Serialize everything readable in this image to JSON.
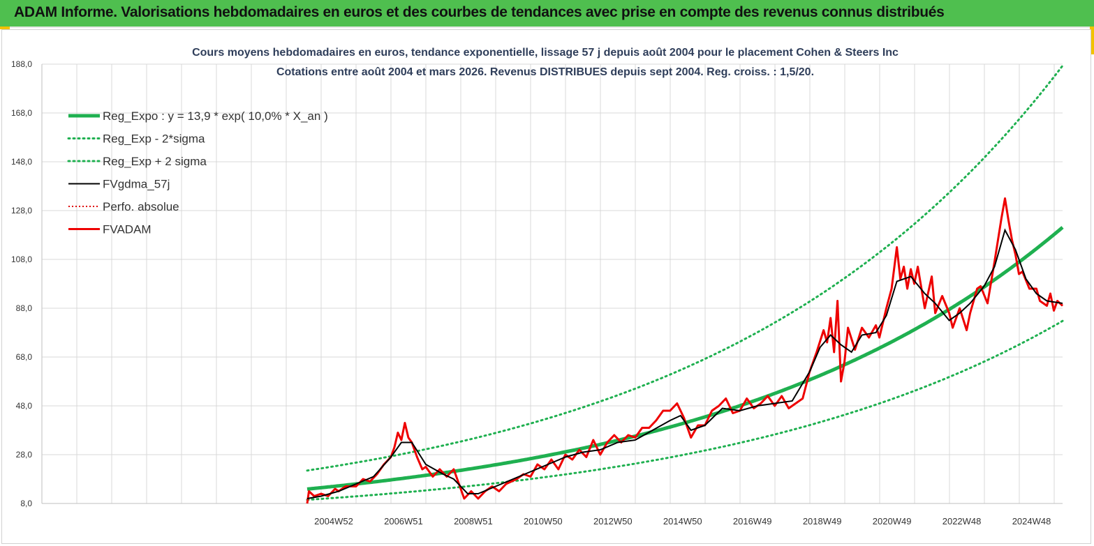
{
  "header": {
    "banner": "ADAM Informe. Valorisations hebdomadaires en euros et des courbes de tendances avec prise en compte des revenus connus distribués"
  },
  "chart_data": {
    "type": "line",
    "title": "Cours moyens hebdomadaires en euros, tendance exponentielle, lissage 57 j depuis août 2004 pour le placement Cohen & Steers Inc",
    "subtitle": "Cotations entre août 2004 et mars 2026. Revenus DISTRIBUES depuis sept 2004. Reg. croiss. : 1,5/20.",
    "y_ticks": [
      "8,0",
      "28,0",
      "48,0",
      "68,0",
      "88,0",
      "108,0",
      "128,0",
      "148,0",
      "168,0",
      "188,0"
    ],
    "ylim": [
      8,
      188
    ],
    "x_ticks": [
      "2004W52",
      "2006W51",
      "2008W51",
      "2010W50",
      "2012W50",
      "2014W50",
      "2016W49",
      "2018W49",
      "2020W49",
      "2022W48",
      "2024W48"
    ],
    "x_tick_years": [
      2005.0,
      2007.0,
      2009.0,
      2011.0,
      2013.0,
      2015.0,
      2017.0,
      2019.0,
      2021.0,
      2023.0,
      2025.0
    ],
    "xlim": [
      2004.6,
      2026.25
    ],
    "grid": true,
    "legend_position": "top-left",
    "colors": {
      "reg_expo": "#1fb050",
      "bands": "#1fb050",
      "smooth": "#000000",
      "perfo": "#e00000",
      "fvadam": "#ee0000",
      "grid": "#d9d9d9"
    },
    "series": [
      {
        "name": "Reg_Expo : y = 13,9 * exp( 10,0% *  X_an )",
        "style": "thick-solid",
        "model": {
          "a": 13.9,
          "rate": 0.1,
          "x0": 2004.6
        }
      },
      {
        "name": "Reg_Exp - 2*sigma",
        "style": "dotted",
        "model": {
          "a": 9.5,
          "rate": 0.1,
          "x0": 2004.6
        }
      },
      {
        "name": "Reg_Exp + 2 sigma",
        "style": "dotted",
        "model": {
          "a": 21.5,
          "rate": 0.1,
          "x0": 2004.6
        }
      },
      {
        "name": "FVgdma_57j",
        "style": "thin-solid",
        "points": [
          [
            2004.6,
            10
          ],
          [
            2005.0,
            11
          ],
          [
            2005.5,
            13
          ],
          [
            2006.0,
            16
          ],
          [
            2006.5,
            19
          ],
          [
            2007.0,
            27
          ],
          [
            2007.3,
            33
          ],
          [
            2007.6,
            33
          ],
          [
            2008.0,
            24
          ],
          [
            2008.5,
            20
          ],
          [
            2008.8,
            18
          ],
          [
            2009.2,
            12
          ],
          [
            2009.5,
            12
          ],
          [
            2010.0,
            15
          ],
          [
            2010.5,
            18
          ],
          [
            2011.0,
            21
          ],
          [
            2011.5,
            24
          ],
          [
            2012.0,
            27
          ],
          [
            2012.5,
            29
          ],
          [
            2013.0,
            30
          ],
          [
            2013.5,
            33
          ],
          [
            2014.0,
            34
          ],
          [
            2014.5,
            38
          ],
          [
            2015.0,
            42
          ],
          [
            2015.3,
            44
          ],
          [
            2015.6,
            38
          ],
          [
            2016.0,
            40
          ],
          [
            2016.5,
            47
          ],
          [
            2017.0,
            46
          ],
          [
            2017.5,
            48
          ],
          [
            2018.0,
            49
          ],
          [
            2018.5,
            50
          ],
          [
            2019.0,
            62
          ],
          [
            2019.3,
            72
          ],
          [
            2019.6,
            77
          ],
          [
            2019.9,
            73
          ],
          [
            2020.2,
            70
          ],
          [
            2020.5,
            77
          ],
          [
            2020.9,
            78
          ],
          [
            2021.2,
            85
          ],
          [
            2021.5,
            99
          ],
          [
            2021.9,
            101
          ],
          [
            2022.3,
            94
          ],
          [
            2022.6,
            90
          ],
          [
            2023.0,
            83
          ],
          [
            2023.3,
            86
          ],
          [
            2023.6,
            90
          ],
          [
            2024.0,
            97
          ],
          [
            2024.3,
            105
          ],
          [
            2024.6,
            120
          ],
          [
            2024.9,
            112
          ],
          [
            2025.2,
            100
          ],
          [
            2025.5,
            94
          ],
          [
            2025.8,
            91
          ],
          [
            2026.25,
            90
          ]
        ]
      },
      {
        "name": "Perfo. absolue",
        "style": "dotted-red",
        "points": []
      },
      {
        "name": "FVADAM",
        "style": "thick-red",
        "points": [
          [
            2004.6,
            8
          ],
          [
            2004.65,
            13
          ],
          [
            2004.8,
            11
          ],
          [
            2005.0,
            12
          ],
          [
            2005.2,
            11
          ],
          [
            2005.4,
            14
          ],
          [
            2005.5,
            13
          ],
          [
            2005.7,
            15
          ],
          [
            2006.0,
            15
          ],
          [
            2006.2,
            18
          ],
          [
            2006.4,
            17
          ],
          [
            2006.6,
            20
          ],
          [
            2006.8,
            24
          ],
          [
            2007.0,
            27
          ],
          [
            2007.1,
            31
          ],
          [
            2007.2,
            37
          ],
          [
            2007.3,
            34
          ],
          [
            2007.4,
            41
          ],
          [
            2007.5,
            35
          ],
          [
            2007.6,
            33
          ],
          [
            2007.75,
            27
          ],
          [
            2007.9,
            22
          ],
          [
            2008.0,
            23
          ],
          [
            2008.2,
            19
          ],
          [
            2008.4,
            22
          ],
          [
            2008.6,
            19
          ],
          [
            2008.8,
            22
          ],
          [
            2008.9,
            18
          ],
          [
            2009.0,
            14
          ],
          [
            2009.1,
            10
          ],
          [
            2009.3,
            13
          ],
          [
            2009.5,
            10
          ],
          [
            2009.7,
            13
          ],
          [
            2009.9,
            15
          ],
          [
            2010.1,
            13
          ],
          [
            2010.3,
            16
          ],
          [
            2010.6,
            18
          ],
          [
            2010.8,
            20
          ],
          [
            2011.0,
            19
          ],
          [
            2011.2,
            24
          ],
          [
            2011.4,
            22
          ],
          [
            2011.6,
            26
          ],
          [
            2011.8,
            22
          ],
          [
            2012.0,
            28
          ],
          [
            2012.2,
            26
          ],
          [
            2012.4,
            30
          ],
          [
            2012.6,
            27
          ],
          [
            2012.8,
            34
          ],
          [
            2013.0,
            28
          ],
          [
            2013.2,
            33
          ],
          [
            2013.4,
            36
          ],
          [
            2013.6,
            33
          ],
          [
            2013.8,
            36
          ],
          [
            2014.0,
            35
          ],
          [
            2014.2,
            39
          ],
          [
            2014.4,
            39
          ],
          [
            2014.6,
            42
          ],
          [
            2014.8,
            46
          ],
          [
            2015.0,
            46
          ],
          [
            2015.2,
            49
          ],
          [
            2015.4,
            43
          ],
          [
            2015.6,
            35
          ],
          [
            2015.8,
            40
          ],
          [
            2016.0,
            40
          ],
          [
            2016.2,
            46
          ],
          [
            2016.4,
            48
          ],
          [
            2016.6,
            51
          ],
          [
            2016.8,
            45
          ],
          [
            2017.0,
            46
          ],
          [
            2017.2,
            51
          ],
          [
            2017.4,
            47
          ],
          [
            2017.6,
            49
          ],
          [
            2017.8,
            52
          ],
          [
            2018.0,
            48
          ],
          [
            2018.2,
            52
          ],
          [
            2018.4,
            47
          ],
          [
            2018.6,
            49
          ],
          [
            2018.8,
            51
          ],
          [
            2019.0,
            62
          ],
          [
            2019.2,
            70
          ],
          [
            2019.4,
            79
          ],
          [
            2019.5,
            74
          ],
          [
            2019.6,
            84
          ],
          [
            2019.7,
            70
          ],
          [
            2019.8,
            91
          ],
          [
            2019.9,
            58
          ],
          [
            2020.0,
            66
          ],
          [
            2020.1,
            80
          ],
          [
            2020.3,
            71
          ],
          [
            2020.5,
            80
          ],
          [
            2020.7,
            76
          ],
          [
            2020.9,
            81
          ],
          [
            2021.0,
            76
          ],
          [
            2021.2,
            88
          ],
          [
            2021.35,
            96
          ],
          [
            2021.5,
            113
          ],
          [
            2021.6,
            100
          ],
          [
            2021.7,
            105
          ],
          [
            2021.8,
            96
          ],
          [
            2021.9,
            104
          ],
          [
            2022.0,
            98
          ],
          [
            2022.1,
            105
          ],
          [
            2022.3,
            88
          ],
          [
            2022.5,
            101
          ],
          [
            2022.6,
            86
          ],
          [
            2022.8,
            93
          ],
          [
            2023.0,
            86
          ],
          [
            2023.1,
            80
          ],
          [
            2023.3,
            88
          ],
          [
            2023.5,
            79
          ],
          [
            2023.6,
            86
          ],
          [
            2023.8,
            96
          ],
          [
            2023.9,
            97
          ],
          [
            2024.1,
            90
          ],
          [
            2024.3,
            107
          ],
          [
            2024.5,
            125
          ],
          [
            2024.6,
            133
          ],
          [
            2024.7,
            124
          ],
          [
            2024.8,
            116
          ],
          [
            2024.9,
            110
          ],
          [
            2025.0,
            102
          ],
          [
            2025.1,
            103
          ],
          [
            2025.3,
            96
          ],
          [
            2025.5,
            96
          ],
          [
            2025.6,
            91
          ],
          [
            2025.8,
            89
          ],
          [
            2025.9,
            94
          ],
          [
            2026.0,
            87
          ],
          [
            2026.1,
            91
          ],
          [
            2026.25,
            89
          ]
        ]
      }
    ]
  }
}
